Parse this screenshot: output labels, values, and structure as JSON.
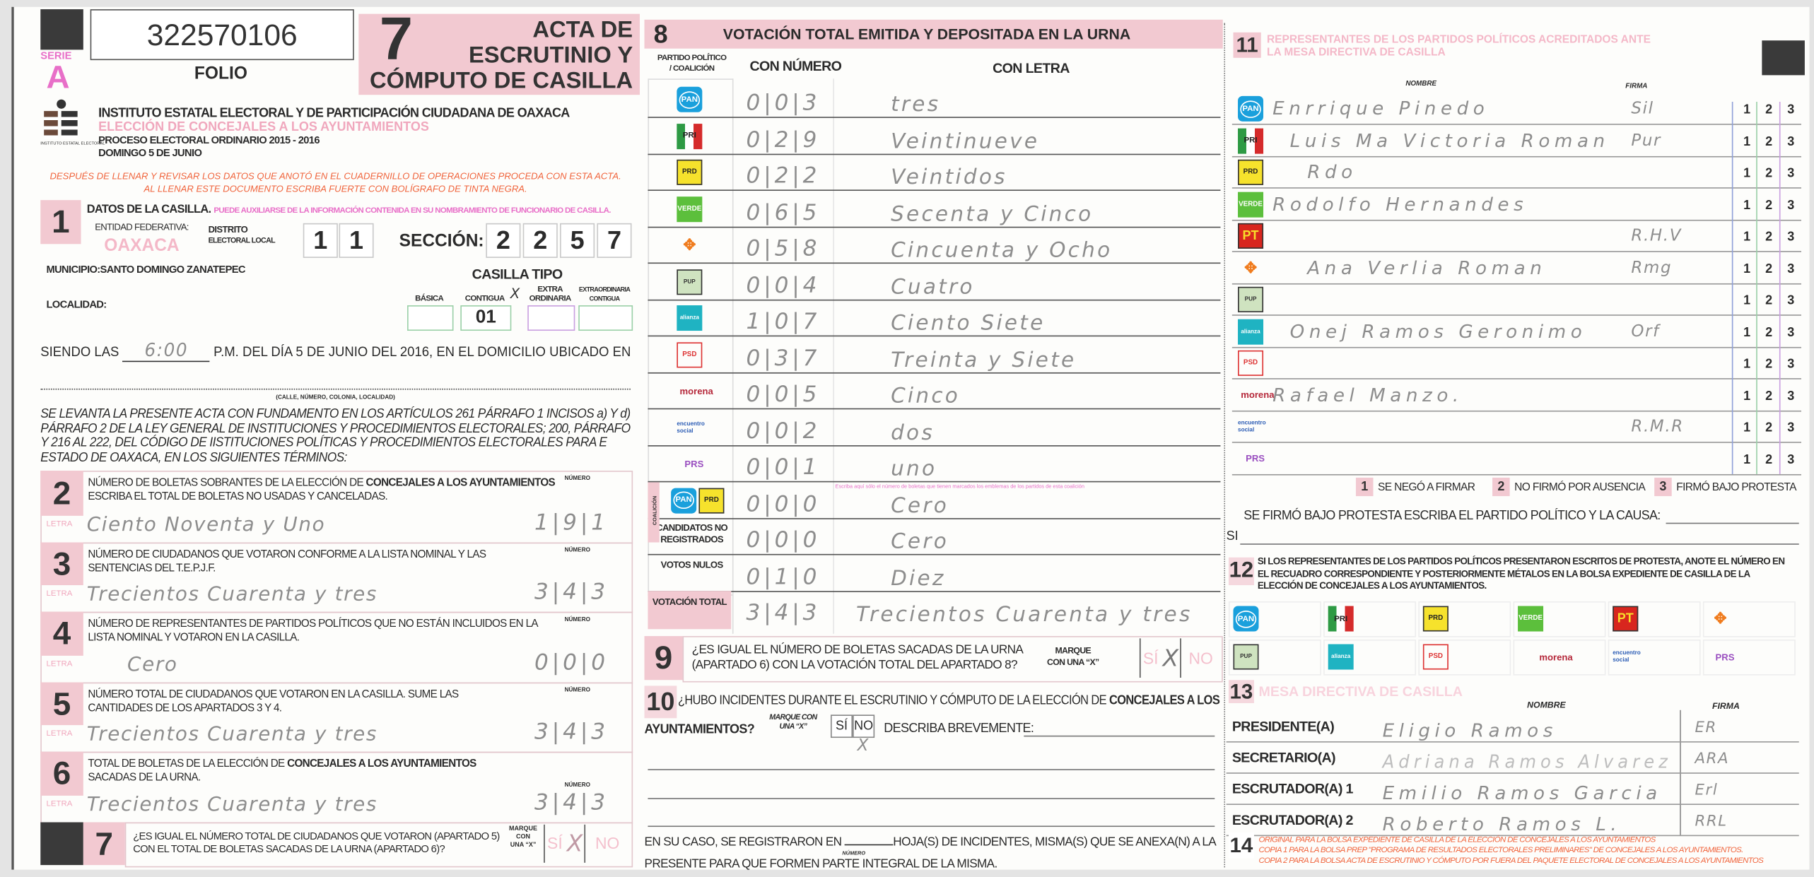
{
  "header": {
    "serie_label": "SERIE",
    "serie": "A",
    "folio_number": "322570106",
    "folio_label": "FOLIO",
    "acta_number": "7",
    "acta_title_1": "ACTA DE",
    "acta_title_2": "ESCRUTINIO Y",
    "acta_title_3": "CÓMPUTO DE CASILLA",
    "logo_text": "INSTITUTO ESTATAL ELECTORAL",
    "institute": "INSTITUTO ESTATAL ELECTORAL Y DE PARTICIPACIÓN CIUDADANA DE OAXACA",
    "election": "ELECCIÓN DE CONCEJALES A LOS AYUNTAMIENTOS",
    "process": "PROCESO ELECTORAL ORDINARIO 2015 - 2016",
    "date": "DOMINGO 5 DE JUNIO",
    "instruction_1": "DESPUÉS DE LLENAR Y REVISAR LOS DATOS QUE ANOTÓ EN EL CUADERNILLO DE OPERACIONES PROCEDA CON ESTA ACTA.",
    "instruction_2": "AL LLENAR ESTE DOCUMENTO ESCRIBA FUERTE CON BOLÍGRAFO DE TINTA NEGRA."
  },
  "s1": {
    "num": "1",
    "title": "DATOS DE LA CASILLA.",
    "hint": "PUEDE AUXILIARSE DE LA INFORMACIÓN CONTENIDA EN SU NOMBRAMIENTO DE FUNCIONARIO DE CASILLA.",
    "entidad_label": "ENTIDAD FEDERATIVA:",
    "entidad": "OAXACA",
    "distrito_label_1": "DISTRITO",
    "distrito_label_2": "ELECTORAL LOCAL",
    "distrito": [
      "1",
      "1"
    ],
    "seccion_label": "SECCIÓN:",
    "seccion": [
      "2",
      "2",
      "5",
      "7"
    ],
    "municipio_label": "MUNICIPIO:",
    "municipio": "SANTO DOMINGO ZANATEPEC",
    "localidad_label": "LOCALIDAD:",
    "casilla_tipo_label": "CASILLA TIPO",
    "tipos": [
      {
        "label": "BÁSICA",
        "value": ""
      },
      {
        "label": "CONTIGUA",
        "value": "01",
        "mark": "X"
      },
      {
        "label": "EXTRA ORDINARIA",
        "value": ""
      },
      {
        "label": "EXTRAORDINARIA CONTIGUA",
        "value": ""
      }
    ]
  },
  "opening": {
    "prefix": "SIENDO LAS",
    "time": "6:00",
    "suffix": "P.M. DEL DÍA 5 DE JUNIO DEL 2016, EN EL DOMICILIO UBICADO EN",
    "address_label": "(CALLE, NÚMERO, COLONIA, LOCALIDAD)",
    "legal_1": "SE LEVANTA LA PRESENTE ACTA CON FUNDAMENTO EN LOS ARTÍCULOS 261 PÁRRAFO 1 INCISOS a) Y d)",
    "legal_2": "PÁRRAFO 2 DE LA LEY GENERAL DE INSTITUCIONES Y PROCEDIMIENTOS ELECTORALES; 200, PÁRRAFO",
    "legal_3": "Y 216 AL 222,  DEL CÓDIGO DE IISTITUCIONES POLÍTICAS Y PROCEDIMIENTOS ELECTORALES PARA E",
    "legal_4": "ESTADO DE OAXACA, EN LOS SIGUIENTES TÉRMINOS:"
  },
  "labels": {
    "numero": "NÚMERO",
    "letra": "LETRA"
  },
  "counts": [
    {
      "num": "2",
      "t1": "NÚMERO DE BOLETAS SOBRANTES DE LA ELECCIÓN DE ",
      "bold": "CONCEJALES A LOS AYUNTAMIENTOS",
      "t2": "ESCRIBA EL TOTAL DE BOLETAS NO USADAS Y CANCELADAS.",
      "letra": "Ciento Noventa y Uno",
      "digits": "1|9|1"
    },
    {
      "num": "3",
      "t1": "NÚMERO DE CIUDADANOS QUE VOTARON CONFORME A LA LISTA NOMINAL Y LAS",
      "bold": "",
      "t2": "SENTENCIAS DEL T.E.P.J.F.",
      "letra": "Trecientos Cuarenta y tres",
      "digits": "3|4|3"
    },
    {
      "num": "4",
      "t1": "NÚMERO DE REPRESENTANTES DE PARTIDOS POLÍTICOS QUE NO ESTÁN INCLUIDOS EN LA",
      "bold": "",
      "t2": "LISTA NOMINAL Y VOTARON EN LA CASILLA.",
      "letra": "Cero",
      "digits": "0|0|0"
    },
    {
      "num": "5",
      "t1": "NÚMERO TOTAL DE CIUDADANOS QUE VOTARON EN LA CASILLA. SUME LAS",
      "bold": "",
      "t2": "CANTIDADES DE LOS APARTADOS 3 Y 4.",
      "letra": "Trecientos Cuarenta y tres",
      "digits": "3|4|3"
    },
    {
      "num": "6",
      "t1": "TOTAL DE BOLETAS DE LA ELECCIÓN DE ",
      "bold": "CONCEJALES A LOS AYUNTAMIENTOS",
      "t2": "SACADAS DE LA URNA.",
      "letra": "Trecientos Cuarenta y tres",
      "digits": "3|4|3"
    }
  ],
  "s7": {
    "num": "7",
    "q1": "¿ES IGUAL EL NÚMERO TOTAL DE CIUDADANOS QUE VOTARON (APARTADO 5)",
    "q2": "CON EL TOTAL DE BOLETAS SACADAS  DE LA URNA (APARTADO 6)?",
    "mark_1": "MARQUE",
    "mark_2": "CON",
    "mark_3": "UNA “X”",
    "yes": "SÍ",
    "no": "NO",
    "mark": "X"
  },
  "s8": {
    "num": "8",
    "title": "VOTACIÓN TOTAL EMITIDA Y DEPOSITADA EN LA URNA",
    "col_party_1": "PARTIDO POLÍTICO",
    "col_party_2": "/ COALICIÓN",
    "col_number": "CON NÚMERO",
    "col_letter": "CON LETRA",
    "coalition_label": "COALICIÓN",
    "coalition_note": "Escriba aquí sólo el número de boletas que tienen marcados los emblemas de los partidos de esta coalición",
    "rows": [
      {
        "party": "pan",
        "logo": "PAN",
        "digits": "0|0|3",
        "letra": "tres"
      },
      {
        "party": "pri",
        "logo": "PRI",
        "digits": "0|2|9",
        "letra": "Veintinueve"
      },
      {
        "party": "prd",
        "logo": "PRD",
        "digits": "0|2|2",
        "letra": "Veintidos"
      },
      {
        "party": "verde",
        "logo": "VERDE",
        "digits": "0|6|5",
        "letra": "Secenta y Cinco"
      },
      {
        "party": "mc",
        "logo": "MC",
        "digits": "0|5|8",
        "letra": "Cincuenta y Ocho"
      },
      {
        "party": "pup",
        "logo": "PUP",
        "digits": "0|0|4",
        "letra": "Cuatro"
      },
      {
        "party": "alianza",
        "logo": "alianza",
        "digits": "1|0|7",
        "letra": "Ciento Siete"
      },
      {
        "party": "psd",
        "logo": "PSD",
        "digits": "0|3|7",
        "letra": "Treinta y Siete"
      },
      {
        "party": "morena",
        "logo": "morena",
        "digits": "0|0|5",
        "letra": "Cinco"
      },
      {
        "party": "encuentro",
        "logo": "encuentro social",
        "digits": "0|0|2",
        "letra": "dos"
      },
      {
        "party": "prs",
        "logo": "PRS",
        "digits": "0|0|1",
        "letra": "uno"
      },
      {
        "party": "coalicion",
        "logo": "PAN PRD",
        "digits": "0|0|0",
        "letra": "Cero"
      },
      {
        "party": "cnr",
        "label": "CANDIDATOS NO REGISTRADOS",
        "digits": "0|0|0",
        "letra": "Cero"
      },
      {
        "party": "nulos",
        "label": "VOTOS NULOS",
        "digits": "0|1|0",
        "letra": "Diez"
      },
      {
        "party": "total",
        "label": "VOTACIÓN TOTAL",
        "digits": "3|4|3",
        "letra": "Trecientos Cuarenta y tres"
      }
    ]
  },
  "s9": {
    "num": "9",
    "q1": "¿ES IGUAL EL NÚMERO DE BOLETAS SACADAS DE LA URNA",
    "q2": "(APARTADO 6) CON LA VOTACIÓN TOTAL DEL APARTADO 8?",
    "mark_1": "MARQUE",
    "mark_2": "CON UNA “X”",
    "yes": "SÍ",
    "no": "NO",
    "mark": "X"
  },
  "s10": {
    "num": "10",
    "q1": "¿HUBO INCIDENTES DURANTE EL ESCRUTINIO Y CÓMPUTO DE LA ELECCIÓN  DE ",
    "bold": "CONCEJALES A LOS",
    "q2": "AYUNTAMIENTOS?",
    "mark_1": "MARQUE CON",
    "mark_2": "UNA “X”",
    "yes": "SÍ",
    "no": "NO",
    "mark": "X",
    "describe": "DESCRIBA BREVEMENTE:",
    "sheets_1": "EN SU CASO, SE REGISTRARON EN",
    "sheets_2": "HOJA(S) DE INCIDENTES, MISMA(S) QUE SE ANEXA(N) A LA",
    "sheets_num_label": "NÚMERO",
    "sheets_3": "PRESENTE PARA QUE FORMEN PARTE INTEGRAL DE LA MISMA."
  },
  "s11": {
    "num": "11",
    "title_1": "REPRESENTANTES DE LOS PARTIDOS POLÍTICOS ACREDITADOS ANTE",
    "title_2": "LA MESA DIRECTIVA DE CASILLA",
    "col_name": "NOMBRE",
    "col_sign": "FIRMA",
    "options": [
      "1",
      "2",
      "3"
    ],
    "rows": [
      {
        "party": "pan",
        "logo": "PAN",
        "name": "Enrrique Pinedo",
        "sign": "Sil"
      },
      {
        "party": "pri",
        "logo": "PRI",
        "name": "Luis Ma Victoria Roman",
        "sign": "Pur"
      },
      {
        "party": "prd",
        "logo": "PRD",
        "name": "Rdo",
        "sign": ""
      },
      {
        "party": "verde",
        "logo": "VERDE",
        "name": "Rodolfo Hernandes",
        "sign": ""
      },
      {
        "party": "pt",
        "logo": "PT",
        "name": "",
        "sign": "R.H.V"
      },
      {
        "party": "mc",
        "logo": "MC",
        "name": "Ana Verlia Roman",
        "sign": "Rmg"
      },
      {
        "party": "pup",
        "logo": "PUP",
        "name": "",
        "sign": ""
      },
      {
        "party": "alianza",
        "logo": "alianza",
        "name": "Onej Ramos Geronimo",
        "sign": "Orf"
      },
      {
        "party": "psd",
        "logo": "PSD",
        "name": "",
        "sign": ""
      },
      {
        "party": "morena",
        "logo": "morena",
        "name": "Rafael Manzo.",
        "sign": ""
      },
      {
        "party": "encuentro",
        "logo": "encuentro social",
        "name": "",
        "sign": "R.M.R"
      },
      {
        "party": "prs",
        "logo": "PRS",
        "name": "",
        "sign": ""
      }
    ],
    "legend": [
      {
        "num": "1",
        "text": "SE NEGÓ A FIRMAR"
      },
      {
        "num": "2",
        "text": "NO FIRMÓ POR AUSENCIA"
      },
      {
        "num": "3",
        "text": "FIRMÓ BAJO PROTESTA"
      }
    ],
    "protest_label": "SE FIRMÓ BAJO PROTESTA ESCRIBA EL PARTIDO POLÍTICO Y LA CAUSA:",
    "si_label": "SI"
  },
  "s12": {
    "num": "12",
    "text_1": "SI LOS REPRESENTANTES DE LOS PARTIDOS POLÍTICOS PRESENTARON ESCRITOS DE PROTESTA, ANOTE EL NÚMERO EN",
    "text_2": "EL RECUADRO CORRESPONDIENTE Y POSTERIORMENTE MÉTALOS EN LA BOLSA EXPEDIENTE DE CASILLA DE LA",
    "text_3": "ELECCIÓN DE CONCEJALES A LOS AYUNTAMIENTOS.",
    "parties": [
      {
        "party": "pan",
        "logo": "PAN"
      },
      {
        "party": "pri",
        "logo": "PRI"
      },
      {
        "party": "prd",
        "logo": "PRD"
      },
      {
        "party": "verde",
        "logo": "VERDE"
      },
      {
        "party": "pt",
        "logo": "PT"
      },
      {
        "party": "mc",
        "logo": "MC"
      },
      {
        "party": "pup",
        "logo": "PUP"
      },
      {
        "party": "alianza",
        "logo": "alianza"
      },
      {
        "party": "psd",
        "logo": "PSD"
      },
      {
        "party": "morena",
        "logo": "morena"
      },
      {
        "party": "encuentro",
        "logo": "encuentro social"
      },
      {
        "party": "prs",
        "logo": "PRS"
      }
    ]
  },
  "s13": {
    "num": "13",
    "title": "MESA DIRECTIVA DE CASILLA",
    "col_name": "NOMBRE",
    "col_sign": "FIRMA",
    "rows": [
      {
        "role": "PRESIDENTE(A)",
        "name": "Eligio Ramos",
        "sign": "ER"
      },
      {
        "role": "SECRETARIO(A)",
        "name": "Adriana Ramos Alvarez",
        "sign": "ARA"
      },
      {
        "role": "ESCRUTADOR(A) 1",
        "name": "Emilio Ramos Garcia",
        "sign": "Erl"
      },
      {
        "role": "ESCRUTADOR(A) 2",
        "name": "Roberto Ramos L.",
        "sign": "RRL"
      }
    ]
  },
  "s14": {
    "num": "14",
    "lines": [
      "ORIGINAL PARA LA BOLSA EXPEDIENTE DE CASILLA DE LA ELECCIÓN DE CONCEJALES A LOS AYUNTAMIENTOS",
      "COPIA 1 PARA LA BOLSA PREP \"PROGRAMA DE RESULTADOS ELECTORALES PRELIMINARES\" DE CONCEJALES A LOS AYUNTAMIENTOS.",
      "COPIA 2 PARA LA BOLSA ACTA DE ESCRUTINIO Y CÓMPUTO POR FUERA DEL PAQUETE ELECTORAL DE CONCEJALES A LOS AYUNTAMIENTOS"
    ]
  },
  "colors": {
    "accent_pink": "#f2c9d1",
    "title_pink": "#f0a7bd",
    "instruction_red": "#f0643c",
    "handwriting": "#8d8d8d"
  }
}
